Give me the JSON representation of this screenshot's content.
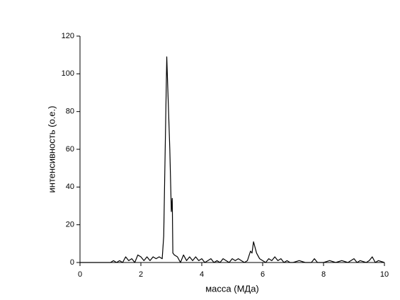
{
  "chart_data": {
    "type": "line",
    "xlabel": "масса (МДа)",
    "ylabel": "интенсивность (о.е.)",
    "x": [
      0,
      0.5,
      1.0,
      1.1,
      1.2,
      1.3,
      1.4,
      1.5,
      1.6,
      1.7,
      1.8,
      1.9,
      2.0,
      2.1,
      2.2,
      2.3,
      2.4,
      2.5,
      2.6,
      2.7,
      2.75,
      2.85,
      2.95,
      3.0,
      3.03,
      3.05,
      3.1,
      3.2,
      3.3,
      3.4,
      3.5,
      3.6,
      3.7,
      3.8,
      3.9,
      4.0,
      4.1,
      4.2,
      4.3,
      4.4,
      4.5,
      4.6,
      4.7,
      4.8,
      4.9,
      5.0,
      5.1,
      5.2,
      5.3,
      5.4,
      5.5,
      5.6,
      5.65,
      5.7,
      5.8,
      5.9,
      6.0,
      6.1,
      6.2,
      6.3,
      6.4,
      6.5,
      6.6,
      6.7,
      6.8,
      6.9,
      7.0,
      7.2,
      7.4,
      7.6,
      7.7,
      7.8,
      8.0,
      8.2,
      8.4,
      8.6,
      8.8,
      9.0,
      9.1,
      9.2,
      9.4,
      9.5,
      9.6,
      9.7,
      9.8,
      10
    ],
    "series": [
      {
        "color": "#000000",
        "values": [
          0,
          0,
          0,
          1,
          0,
          1,
          0,
          3,
          1,
          2,
          0,
          4,
          3,
          1,
          3,
          1,
          3,
          2,
          3,
          2,
          14,
          109,
          60,
          27,
          34,
          5,
          4,
          3,
          0,
          4,
          1,
          3,
          1,
          3,
          1,
          2,
          0,
          1,
          2,
          0,
          1,
          0,
          2,
          1,
          0,
          2,
          1,
          2,
          1,
          0,
          1,
          6,
          5,
          11,
          5,
          2,
          1,
          0,
          2,
          1,
          3,
          1,
          2,
          0,
          1,
          0,
          0,
          1,
          0,
          0,
          2,
          0,
          0,
          1,
          0,
          1,
          0,
          2,
          0,
          1,
          0,
          1,
          3,
          0,
          1,
          0
        ]
      }
    ],
    "xlim": [
      0,
      10
    ],
    "xticks": [
      0,
      2,
      4,
      6,
      8,
      10
    ],
    "ylim": [
      0,
      120
    ],
    "yticks": [
      0,
      20,
      40,
      60,
      80,
      100,
      120
    ]
  }
}
